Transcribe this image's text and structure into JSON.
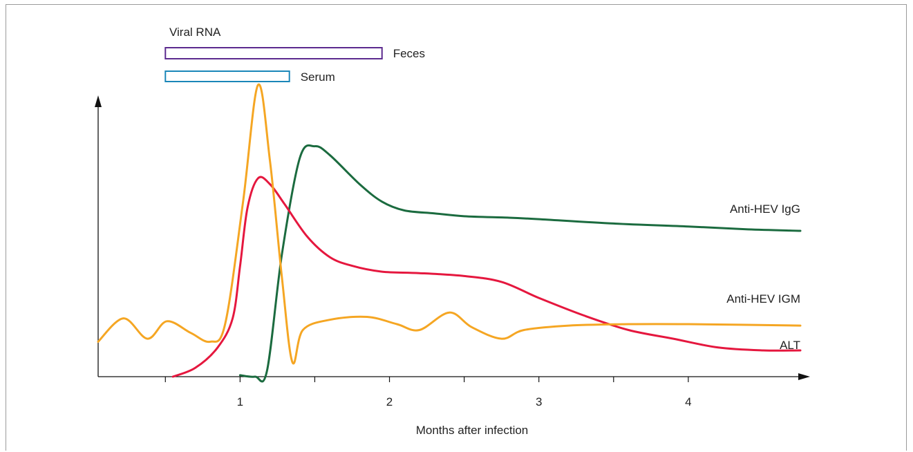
{
  "chart_data": {
    "type": "line",
    "title": "",
    "xlabel": "Months after infection",
    "ylabel": "",
    "xlim": [
      -0.95,
      3.75
    ],
    "ylim": [
      0,
      100
    ],
    "x_ticks": [
      {
        "x": -0.5,
        "label": ""
      },
      {
        "x": 0,
        "label": "1"
      },
      {
        "x": 0.5,
        "label": ""
      },
      {
        "x": 1,
        "label": "2"
      },
      {
        "x": 1.5,
        "label": ""
      },
      {
        "x": 2,
        "label": "3"
      },
      {
        "x": 2.5,
        "label": ""
      },
      {
        "x": 3,
        "label": "4"
      }
    ],
    "viral_rna": {
      "title": "Viral RNA",
      "bars": [
        {
          "name": "Feces",
          "start": -0.5,
          "end": 0.95,
          "color": "#5b2a8e"
        },
        {
          "name": "Serum",
          "start": -0.5,
          "end": 0.33,
          "color": "#1a86b8"
        }
      ]
    },
    "series": [
      {
        "name": "Anti-HEV IgG",
        "color": "#1b6b3f",
        "points": [
          [
            0,
            0.5
          ],
          [
            0.1,
            0
          ],
          [
            0.18,
            2
          ],
          [
            0.28,
            42
          ],
          [
            0.4,
            75
          ],
          [
            0.5,
            79
          ],
          [
            0.6,
            76
          ],
          [
            0.8,
            66
          ],
          [
            0.95,
            60
          ],
          [
            1.1,
            57
          ],
          [
            1.3,
            56
          ],
          [
            1.5,
            55
          ],
          [
            1.8,
            54.5
          ],
          [
            2.0,
            54
          ],
          [
            2.5,
            52.5
          ],
          [
            3.0,
            51.5
          ],
          [
            3.4,
            50.5
          ],
          [
            3.75,
            50
          ]
        ]
      },
      {
        "name": "Anti-HEV IGM",
        "color": "#e5173e",
        "points": [
          [
            -0.45,
            0
          ],
          [
            -0.3,
            3
          ],
          [
            -0.15,
            10
          ],
          [
            -0.05,
            20
          ],
          [
            0.0,
            38
          ],
          [
            0.05,
            58
          ],
          [
            0.12,
            68
          ],
          [
            0.2,
            66
          ],
          [
            0.3,
            59
          ],
          [
            0.45,
            48
          ],
          [
            0.6,
            41
          ],
          [
            0.75,
            38
          ],
          [
            0.95,
            36
          ],
          [
            1.2,
            35.5
          ],
          [
            1.5,
            34.5
          ],
          [
            1.75,
            32.5
          ],
          [
            2.0,
            27
          ],
          [
            2.3,
            21
          ],
          [
            2.6,
            16
          ],
          [
            2.9,
            13
          ],
          [
            3.2,
            10
          ],
          [
            3.5,
            9
          ],
          [
            3.75,
            9
          ]
        ]
      },
      {
        "name": "ALT",
        "color": "#f5a623",
        "points": [
          [
            -0.95,
            12
          ],
          [
            -0.78,
            20
          ],
          [
            -0.62,
            13
          ],
          [
            -0.49,
            19
          ],
          [
            -0.33,
            15
          ],
          [
            -0.2,
            12
          ],
          [
            -0.1,
            18
          ],
          [
            0.02,
            60
          ],
          [
            0.12,
            100
          ],
          [
            0.2,
            74
          ],
          [
            0.28,
            34
          ],
          [
            0.35,
            5
          ],
          [
            0.42,
            16
          ],
          [
            0.6,
            19.5
          ],
          [
            0.85,
            20.5
          ],
          [
            1.05,
            18
          ],
          [
            1.2,
            16
          ],
          [
            1.4,
            22
          ],
          [
            1.55,
            17
          ],
          [
            1.75,
            13
          ],
          [
            1.9,
            16
          ],
          [
            2.2,
            17.5
          ],
          [
            2.6,
            18
          ],
          [
            3.0,
            18
          ],
          [
            3.75,
            17.5
          ]
        ]
      }
    ],
    "legend": "labels at line ends (right)",
    "grid": false
  }
}
